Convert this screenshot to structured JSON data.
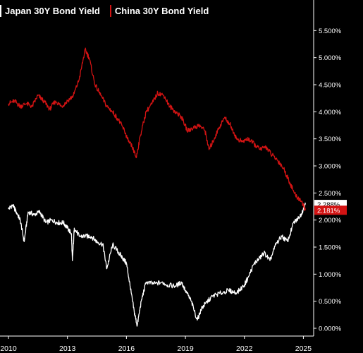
{
  "chart_data": {
    "type": "line",
    "title": "",
    "xlabel": "",
    "ylabel": "",
    "x_ticks": [
      "2010",
      "2013",
      "2016",
      "2019",
      "2022",
      "2025"
    ],
    "y_ticks": [
      "5.500%",
      "5.000%",
      "4.500%",
      "4.000%",
      "3.500%",
      "3.000%",
      "2.500%",
      "2.000%",
      "1.500%",
      "1.000%",
      "0.500%",
      "0.000%"
    ],
    "ylim": [
      0,
      5.7
    ],
    "xlim": [
      2010.0,
      2025.2
    ],
    "grid": false,
    "legend_position": "top-left",
    "series": [
      {
        "name": "Japan 30Y Bond Yield",
        "color": "#ffffff",
        "last_value_label": "2.288%",
        "points": [
          [
            2010.0,
            2.2
          ],
          [
            2010.2,
            2.28
          ],
          [
            2010.4,
            2.15
          ],
          [
            2010.6,
            2.0
          ],
          [
            2010.8,
            1.6
          ],
          [
            2011.0,
            2.15
          ],
          [
            2011.3,
            2.1
          ],
          [
            2011.6,
            2.15
          ],
          [
            2011.9,
            1.95
          ],
          [
            2012.2,
            2.0
          ],
          [
            2012.5,
            1.95
          ],
          [
            2012.8,
            1.95
          ],
          [
            2013.0,
            1.85
          ],
          [
            2013.2,
            1.75
          ],
          [
            2013.25,
            1.25
          ],
          [
            2013.35,
            1.85
          ],
          [
            2013.6,
            1.7
          ],
          [
            2013.9,
            1.7
          ],
          [
            2014.2,
            1.7
          ],
          [
            2014.5,
            1.6
          ],
          [
            2014.8,
            1.55
          ],
          [
            2015.0,
            1.1
          ],
          [
            2015.3,
            1.55
          ],
          [
            2015.6,
            1.4
          ],
          [
            2015.8,
            1.3
          ],
          [
            2016.0,
            1.2
          ],
          [
            2016.2,
            0.75
          ],
          [
            2016.4,
            0.3
          ],
          [
            2016.55,
            0.05
          ],
          [
            2016.75,
            0.5
          ],
          [
            2017.0,
            0.85
          ],
          [
            2017.4,
            0.82
          ],
          [
            2017.8,
            0.85
          ],
          [
            2018.1,
            0.8
          ],
          [
            2018.5,
            0.78
          ],
          [
            2018.8,
            0.85
          ],
          [
            2019.0,
            0.7
          ],
          [
            2019.3,
            0.5
          ],
          [
            2019.6,
            0.15
          ],
          [
            2019.8,
            0.35
          ],
          [
            2020.0,
            0.45
          ],
          [
            2020.4,
            0.6
          ],
          [
            2020.8,
            0.65
          ],
          [
            2021.2,
            0.7
          ],
          [
            2021.6,
            0.65
          ],
          [
            2022.0,
            0.8
          ],
          [
            2022.2,
            0.95
          ],
          [
            2022.5,
            1.2
          ],
          [
            2022.8,
            1.3
          ],
          [
            2023.0,
            1.4
          ],
          [
            2023.3,
            1.25
          ],
          [
            2023.6,
            1.55
          ],
          [
            2023.9,
            1.7
          ],
          [
            2024.2,
            1.6
          ],
          [
            2024.5,
            1.95
          ],
          [
            2024.8,
            2.05
          ],
          [
            2025.0,
            2.2
          ],
          [
            2025.1,
            2.288
          ]
        ]
      },
      {
        "name": "China 30Y Bond Yield",
        "color": "#d31313",
        "last_value_label": "2.181%",
        "points": [
          [
            2010.0,
            4.15
          ],
          [
            2010.3,
            4.2
          ],
          [
            2010.6,
            4.1
          ],
          [
            2010.9,
            4.15
          ],
          [
            2011.2,
            4.1
          ],
          [
            2011.5,
            4.3
          ],
          [
            2011.8,
            4.2
          ],
          [
            2012.1,
            4.05
          ],
          [
            2012.4,
            4.2
          ],
          [
            2012.7,
            4.1
          ],
          [
            2013.0,
            4.2
          ],
          [
            2013.3,
            4.3
          ],
          [
            2013.6,
            4.6
          ],
          [
            2013.9,
            5.15
          ],
          [
            2014.1,
            5.0
          ],
          [
            2014.4,
            4.5
          ],
          [
            2014.7,
            4.3
          ],
          [
            2015.0,
            4.1
          ],
          [
            2015.3,
            4.0
          ],
          [
            2015.6,
            3.85
          ],
          [
            2015.9,
            3.65
          ],
          [
            2016.1,
            3.45
          ],
          [
            2016.3,
            3.35
          ],
          [
            2016.5,
            3.15
          ],
          [
            2016.7,
            3.55
          ],
          [
            2017.0,
            4.0
          ],
          [
            2017.3,
            4.15
          ],
          [
            2017.6,
            4.35
          ],
          [
            2017.9,
            4.3
          ],
          [
            2018.2,
            4.1
          ],
          [
            2018.5,
            4.0
          ],
          [
            2018.8,
            3.9
          ],
          [
            2019.1,
            3.65
          ],
          [
            2019.4,
            3.7
          ],
          [
            2019.7,
            3.75
          ],
          [
            2020.0,
            3.65
          ],
          [
            2020.2,
            3.3
          ],
          [
            2020.4,
            3.45
          ],
          [
            2020.7,
            3.7
          ],
          [
            2021.0,
            3.9
          ],
          [
            2021.3,
            3.75
          ],
          [
            2021.6,
            3.5
          ],
          [
            2021.9,
            3.45
          ],
          [
            2022.2,
            3.5
          ],
          [
            2022.5,
            3.4
          ],
          [
            2022.8,
            3.3
          ],
          [
            2023.1,
            3.35
          ],
          [
            2023.4,
            3.2
          ],
          [
            2023.7,
            3.1
          ],
          [
            2024.0,
            2.95
          ],
          [
            2024.3,
            2.7
          ],
          [
            2024.6,
            2.45
          ],
          [
            2024.9,
            2.35
          ],
          [
            2025.1,
            2.181
          ]
        ]
      }
    ]
  }
}
